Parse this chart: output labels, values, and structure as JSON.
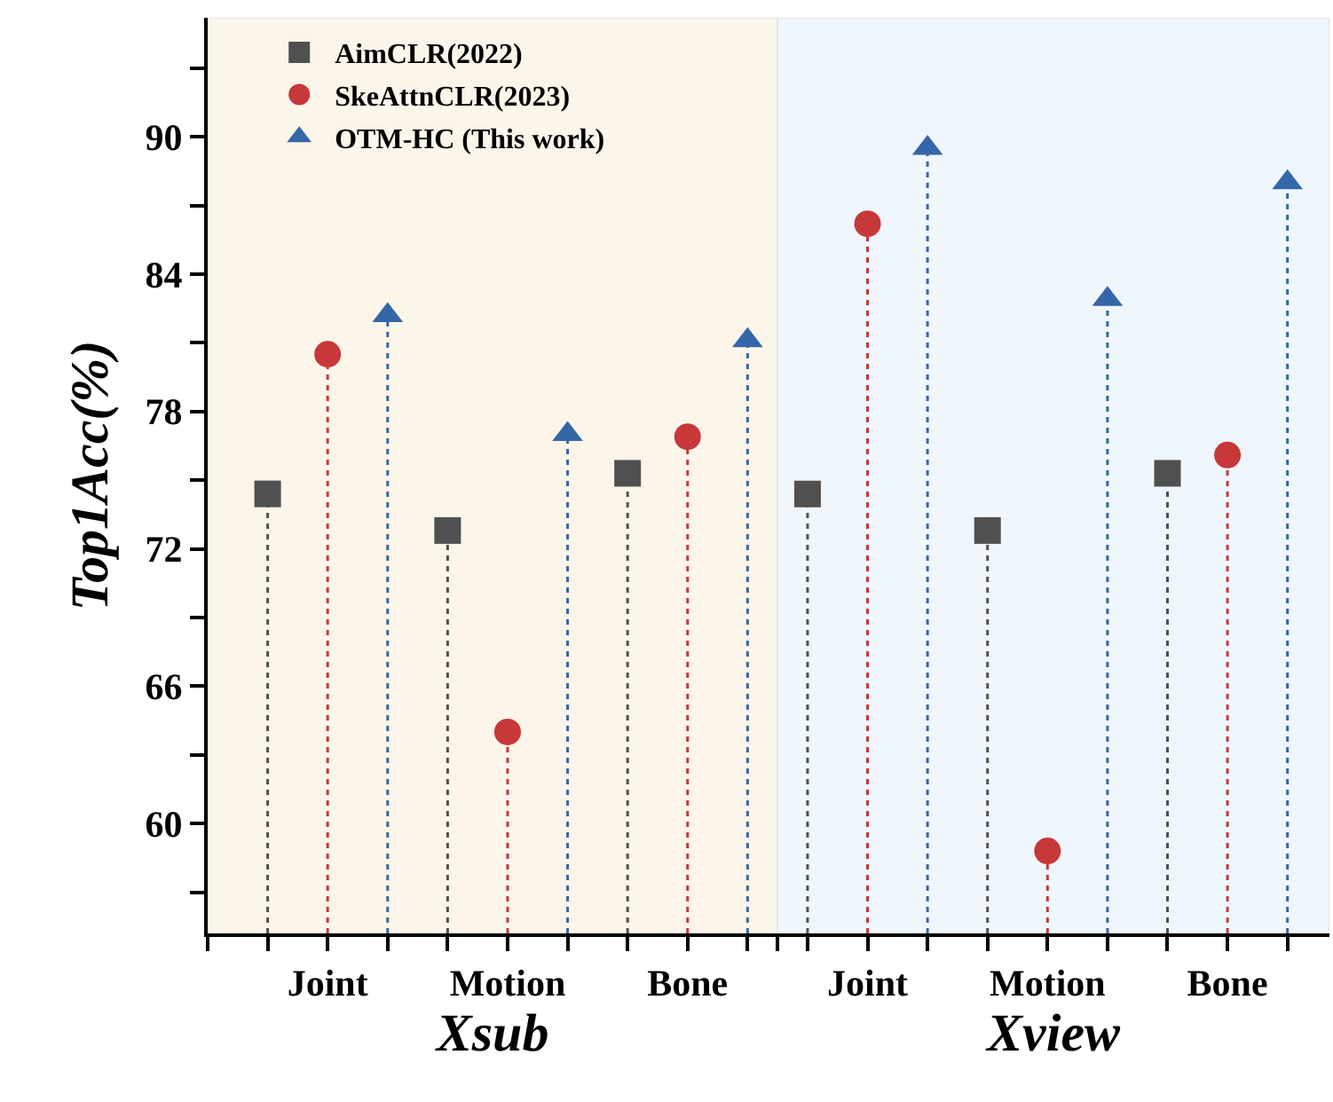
{
  "chart_data": [
    {
      "type": "lollipop",
      "ylabel": "Top1Acc(%)",
      "xlabel": "Xsub",
      "categories": [
        "Joint",
        "Motion",
        "Bone"
      ],
      "series": [
        {
          "name": "AimCLR(2022)",
          "color": "#505050",
          "marker": "square",
          "values": [
            74.4,
            72.8,
            75.3
          ]
        },
        {
          "name": "SkeAttnCLR(2023)",
          "color": "#c8373a",
          "marker": "circle",
          "values": [
            80.5,
            64.0,
            76.9
          ]
        },
        {
          "name": "OTM-HC (This work)",
          "color": "#3566a8",
          "marker": "triangle",
          "values": [
            82.2,
            77.0,
            81.1
          ]
        }
      ],
      "ylim": [
        55.2,
        95.2
      ],
      "yticks": [
        {
          "value": 57,
          "label": null
        },
        60,
        {
          "value": 63,
          "label": null
        },
        66,
        {
          "value": 69,
          "label": null
        },
        72,
        {
          "value": 75,
          "label": null
        },
        78,
        {
          "value": 81,
          "label": null
        },
        84,
        {
          "value": 87,
          "label": null
        },
        90,
        {
          "value": 93,
          "label": null
        }
      ],
      "line_style": "dotted",
      "legend": "top left",
      "grid": false
    },
    {
      "type": "lollipop",
      "xlabel": "Xview",
      "categories": [
        "Joint",
        "Motion",
        "Bone"
      ],
      "series": [
        {
          "color": "#505050",
          "marker": "square",
          "values": [
            74.4,
            72.8,
            75.3
          ]
        },
        {
          "color": "#c8373a",
          "marker": "circle",
          "values": [
            86.2,
            58.8,
            76.1
          ]
        },
        {
          "color": "#3566a8",
          "marker": "triangle",
          "values": [
            89.5,
            82.9,
            88.0
          ]
        }
      ],
      "ylim": [
        55.2,
        95.2
      ],
      "tick_labels": "x",
      "line_style": "dotted",
      "grid": false
    }
  ]
}
